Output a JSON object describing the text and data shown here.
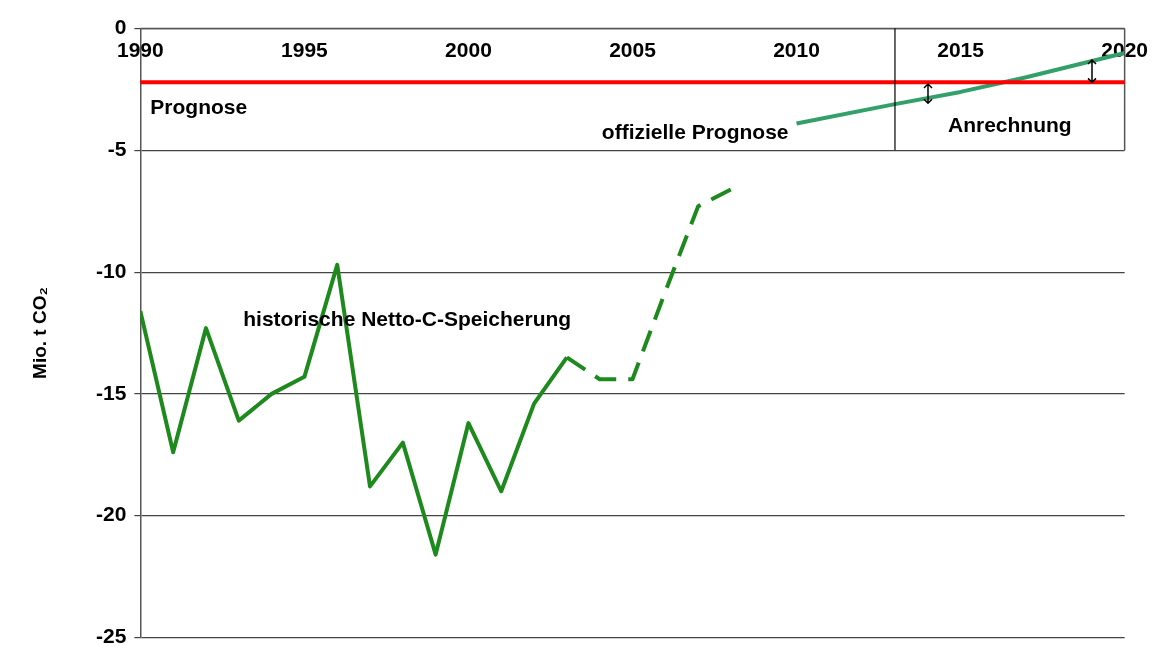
{
  "chart_data": {
    "type": "line",
    "ylabel": "Mio. t CO₂",
    "xlim": [
      1990,
      2020
    ],
    "xticks": [
      1990,
      1995,
      2000,
      2005,
      2010,
      2015,
      2020
    ],
    "ylim": [
      -25,
      0
    ],
    "yticks": [
      -25,
      -20,
      -15,
      -10,
      -5,
      0
    ],
    "grid": "y",
    "series": [
      {
        "name": "historische Netto-C-Speicherung",
        "color": "#1e8a1e",
        "x": [
          1990,
          1991,
          1992,
          1993,
          1994,
          1995,
          1996,
          1997,
          1998,
          1999,
          2000,
          2001,
          2002,
          2003
        ],
        "values": [
          -11.6,
          -17.4,
          -12.3,
          -16.1,
          -15.0,
          -14.3,
          -9.7,
          -18.8,
          -17.0,
          -21.6,
          -16.2,
          -19.0,
          -15.4,
          -13.5
        ],
        "line_style": "solid"
      },
      {
        "color": "#1e8a1e",
        "x": [
          2003,
          2004,
          2005,
          2006,
          2007,
          2008
        ],
        "values": [
          -13.5,
          -14.4,
          -14.4,
          -10.8,
          -7.3,
          -6.6
        ],
        "line_style": "dashed"
      },
      {
        "name": "offizielle Prognose",
        "color": "#33a06b",
        "x": [
          2010,
          2013,
          2015,
          2017,
          2020
        ],
        "values": [
          -3.9,
          -3.1,
          -2.6,
          -2.0,
          -1.0
        ],
        "line_style": "solid"
      }
    ],
    "ref_lines": [
      {
        "axis": "y",
        "value": -2.2,
        "label": "Prognose",
        "color": "#ff0000"
      },
      {
        "axis": "x",
        "value": 2013,
        "label": "Anrechnung",
        "color": "#000000"
      }
    ],
    "legend": false,
    "marker": "none"
  }
}
